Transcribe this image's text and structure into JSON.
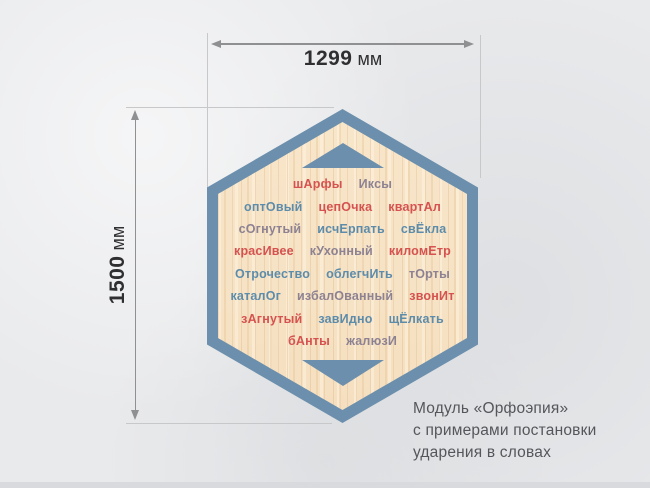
{
  "palette": {
    "accent_red": "#d5524f",
    "accent_blue": "#5d8cab",
    "accent_gray": "#8d8292",
    "frame_blue": "#6b8fac",
    "wood_base": "#f5dfc0",
    "background": "#e9eaec"
  },
  "dimensions": {
    "width": {
      "value": "1299",
      "unit": "мм"
    },
    "height": {
      "value": "1500",
      "unit": "мм"
    }
  },
  "module": {
    "rows": [
      {
        "words": [
          {
            "text": "шАрфы",
            "color": "red"
          },
          {
            "text": "Иксы",
            "color": "gray"
          }
        ]
      },
      {
        "words": [
          {
            "text": "оптОвый",
            "color": "blue"
          },
          {
            "text": "цепОчка",
            "color": "red"
          },
          {
            "text": "квартАл",
            "color": "red"
          }
        ]
      },
      {
        "words": [
          {
            "text": "сОгнутый",
            "color": "gray"
          },
          {
            "text": "исчЕрпать",
            "color": "blue"
          },
          {
            "text": "свЁкла",
            "color": "blue"
          }
        ]
      },
      {
        "words": [
          {
            "text": "красИвее",
            "color": "red"
          },
          {
            "text": "кУхонный",
            "color": "gray"
          },
          {
            "text": "киломЕтр",
            "color": "red"
          }
        ]
      },
      {
        "words": [
          {
            "text": "Отрочество",
            "color": "blue"
          },
          {
            "text": "облегчИть",
            "color": "blue"
          },
          {
            "text": "тОрты",
            "color": "gray"
          }
        ]
      },
      {
        "words": [
          {
            "text": "каталОг",
            "color": "blue"
          },
          {
            "text": "избалОванный",
            "color": "gray"
          },
          {
            "text": "звонИт",
            "color": "red"
          }
        ]
      },
      {
        "words": [
          {
            "text": "зАгнутый",
            "color": "red"
          },
          {
            "text": "завИдно",
            "color": "blue"
          },
          {
            "text": "щЁлкать",
            "color": "blue"
          }
        ]
      },
      {
        "words": [
          {
            "text": "бАнты",
            "color": "red"
          },
          {
            "text": "жалюзИ",
            "color": "gray"
          }
        ]
      }
    ]
  },
  "caption": {
    "lines": [
      "Модуль «Орфоэпия»",
      "с примерами постановки",
      "ударения в словах"
    ]
  }
}
